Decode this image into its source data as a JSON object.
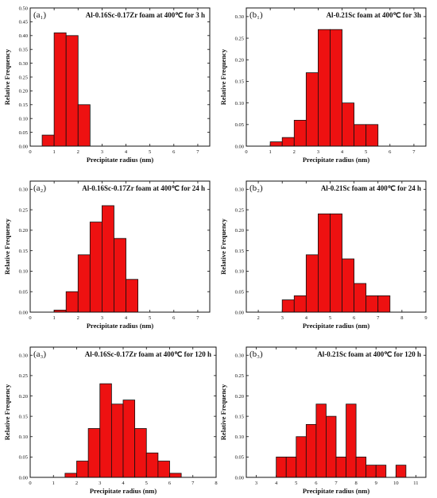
{
  "colors": {
    "bar": "#ee1111",
    "axis": "#111111"
  },
  "chart_data": [
    {
      "type": "bar",
      "panel_label": "(a₁)",
      "title": "Al-0.16Sc-0.17Zr foam at 400℃ for 3 h",
      "xlabel": "Precipitate radius (nm)",
      "ylabel": "Relative Frequency",
      "xlim": [
        0,
        7.5
      ],
      "xticks": [
        0,
        1,
        2,
        3,
        4,
        5,
        6,
        7
      ],
      "ylim": [
        0,
        0.5
      ],
      "yticks": [
        0,
        0.05,
        0.1,
        0.15,
        0.2,
        0.25,
        0.3,
        0.35,
        0.4,
        0.45,
        0.5
      ],
      "bin_width": 0.5,
      "x": [
        0.75,
        1.25,
        1.75,
        2.25
      ],
      "values": [
        0.04,
        0.41,
        0.4,
        0.15
      ]
    },
    {
      "type": "bar",
      "panel_label": "(b₁)",
      "title": "Al-0.21Sc foam at 400℃ for 3h",
      "xlabel": "Precipitate radius (nm)",
      "ylabel": "Relative Frequency",
      "xlim": [
        0,
        7.5
      ],
      "xticks": [
        0,
        1,
        2,
        3,
        4,
        5,
        6,
        7
      ],
      "ylim": [
        0,
        0.32
      ],
      "yticks": [
        0,
        0.05,
        0.1,
        0.15,
        0.2,
        0.25,
        0.3
      ],
      "bin_width": 0.5,
      "x": [
        1.25,
        1.75,
        2.25,
        2.75,
        3.25,
        3.75,
        4.25,
        4.75,
        5.25
      ],
      "values": [
        0.01,
        0.02,
        0.06,
        0.17,
        0.27,
        0.27,
        0.1,
        0.05,
        0.05
      ]
    },
    {
      "type": "bar",
      "panel_label": "(a₂)",
      "title": "Al-0.16Sc-0.17Zr foam at 400℃ for 24 h",
      "xlabel": "Precipitate radius (nm)",
      "ylabel": "Relative Frequency",
      "xlim": [
        0,
        7.5
      ],
      "xticks": [
        0,
        1,
        2,
        3,
        4,
        5,
        6,
        7
      ],
      "ylim": [
        0,
        0.32
      ],
      "yticks": [
        0,
        0.05,
        0.1,
        0.15,
        0.2,
        0.25,
        0.3
      ],
      "bin_width": 0.5,
      "x": [
        1.25,
        1.75,
        2.25,
        2.75,
        3.25,
        3.75,
        4.25
      ],
      "values": [
        0.005,
        0.05,
        0.14,
        0.22,
        0.26,
        0.18,
        0.08
      ]
    },
    {
      "type": "bar",
      "panel_label": "(b₂)",
      "title": "Al-0.21Sc foam at 400℃ for 24 h",
      "xlabel": "Precipitate radius (nm)",
      "ylabel": "Relative Frequency",
      "xlim": [
        1.5,
        9
      ],
      "xticks": [
        2,
        3,
        4,
        5,
        6,
        7,
        8,
        9
      ],
      "ylim": [
        0,
        0.32
      ],
      "yticks": [
        0,
        0.05,
        0.1,
        0.15,
        0.2,
        0.25,
        0.3
      ],
      "bin_width": 0.5,
      "x": [
        3.25,
        3.75,
        4.25,
        4.75,
        5.25,
        5.75,
        6.25,
        6.75,
        7.25
      ],
      "values": [
        0.03,
        0.04,
        0.14,
        0.24,
        0.24,
        0.13,
        0.07,
        0.04,
        0.04
      ]
    },
    {
      "type": "bar",
      "panel_label": "(a₃)",
      "title": "Al-0.16Sc-0.17Zr foam at 400℃ for 120 h",
      "xlabel": "Precipitate radius (nm)",
      "ylabel": "Relative Frequency",
      "xlim": [
        0,
        8
      ],
      "xticks": [
        0,
        1,
        2,
        3,
        4,
        5,
        6,
        7,
        8
      ],
      "ylim": [
        0,
        0.32
      ],
      "yticks": [
        0,
        0.05,
        0.1,
        0.15,
        0.2,
        0.25,
        0.3
      ],
      "bin_width": 0.5,
      "x": [
        1.75,
        2.25,
        2.75,
        3.25,
        3.75,
        4.25,
        4.75,
        5.25,
        5.75,
        6.25
      ],
      "values": [
        0.01,
        0.04,
        0.12,
        0.23,
        0.18,
        0.19,
        0.12,
        0.06,
        0.04,
        0.01
      ]
    },
    {
      "type": "bar",
      "panel_label": "(b₃)",
      "title": "Al-0.21Sc foam at 400℃ for 120 h",
      "xlabel": "Precipitate radius (nm)",
      "ylabel": "Relative Frequency",
      "xlim": [
        2.5,
        11.5
      ],
      "xticks": [
        3,
        4,
        5,
        6,
        7,
        8,
        9,
        10,
        11
      ],
      "ylim": [
        0,
        0.32
      ],
      "yticks": [
        0,
        0.05,
        0.1,
        0.15,
        0.2,
        0.25,
        0.3
      ],
      "bin_width": 0.5,
      "x": [
        4.25,
        4.75,
        5.25,
        5.75,
        6.25,
        6.75,
        7.25,
        7.75,
        8.25,
        8.75,
        9.25,
        10.25
      ],
      "values": [
        0.05,
        0.05,
        0.1,
        0.13,
        0.18,
        0.15,
        0.05,
        0.18,
        0.05,
        0.03,
        0.03,
        0.03
      ]
    }
  ]
}
